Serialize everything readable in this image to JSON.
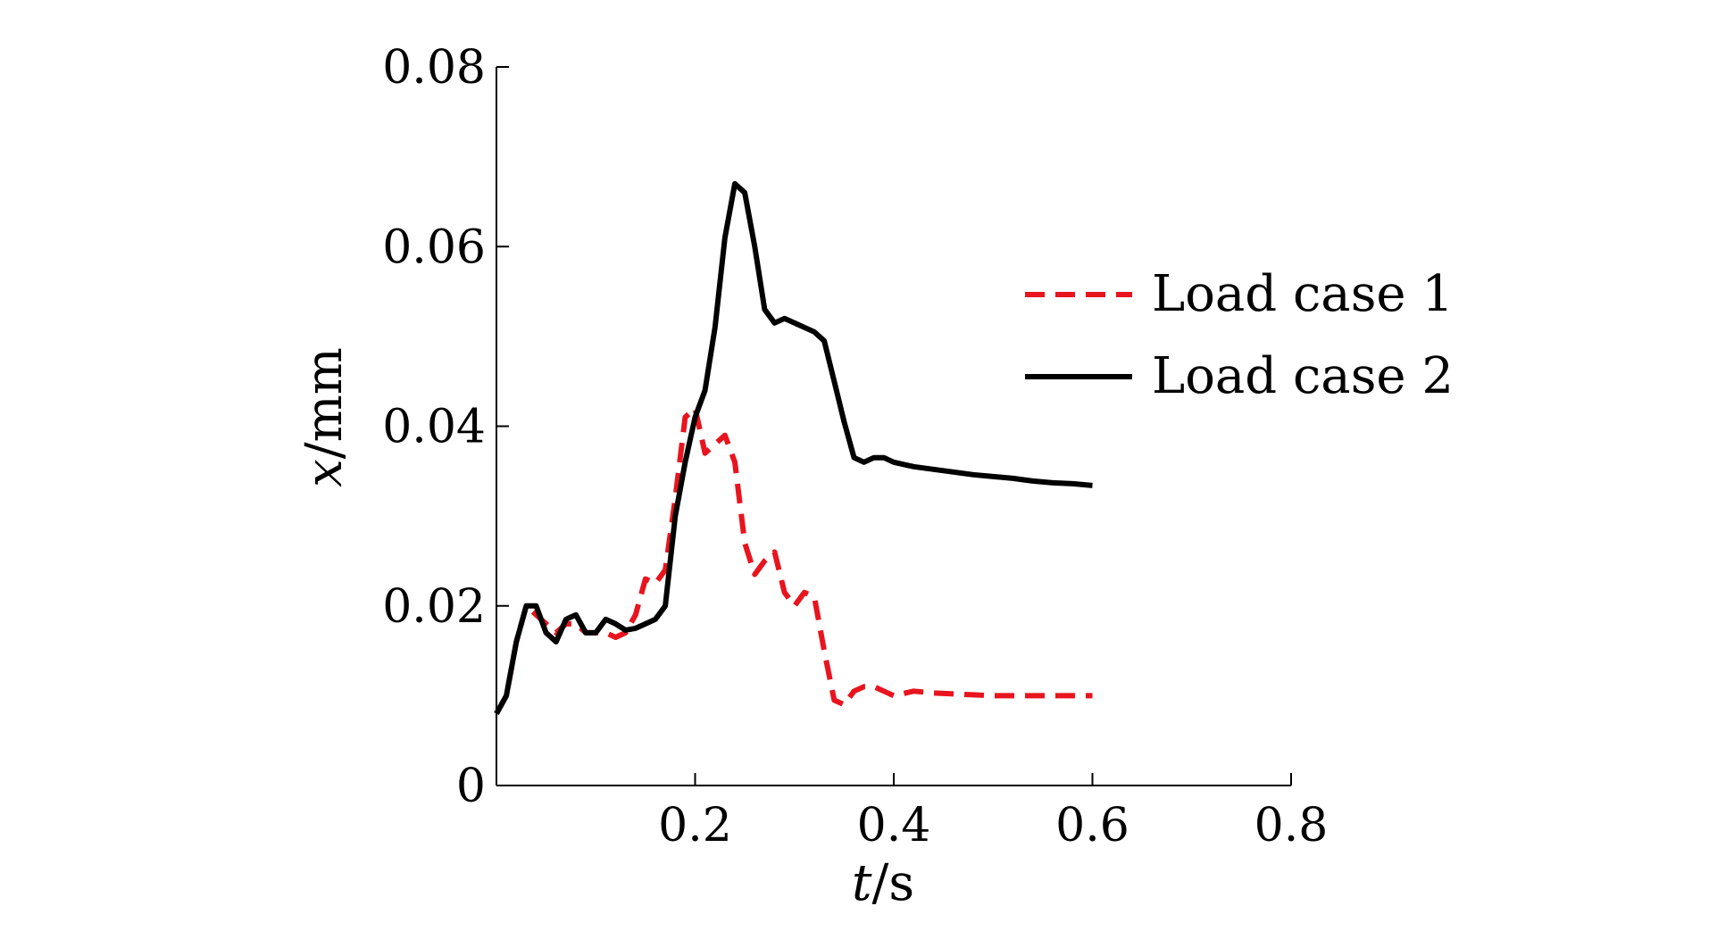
{
  "chart_data": {
    "type": "line",
    "xlabel": {
      "var": "t",
      "unit": "/s"
    },
    "ylabel": {
      "var": "x",
      "unit": "/mm"
    },
    "xlim": [
      0,
      0.8
    ],
    "ylim": [
      0,
      0.08
    ],
    "xticks": [
      0.2,
      0.4,
      0.6,
      0.8
    ],
    "xtick_labels": [
      "0.2",
      "0.4",
      "0.6",
      "0.8"
    ],
    "yticks": [
      0,
      0.02,
      0.04,
      0.06,
      0.08
    ],
    "ytick_labels": [
      "0",
      "0.02",
      "0.04",
      "0.06",
      "0.08"
    ],
    "grid": false,
    "legend_position": "right",
    "series": [
      {
        "name": "Load case 1",
        "color": "#e8141e",
        "style": "dashed",
        "x": [
          0,
          0.01,
          0.02,
          0.03,
          0.04,
          0.05,
          0.06,
          0.07,
          0.08,
          0.09,
          0.1,
          0.11,
          0.12,
          0.13,
          0.14,
          0.15,
          0.16,
          0.17,
          0.18,
          0.19,
          0.2,
          0.21,
          0.22,
          0.23,
          0.24,
          0.25,
          0.26,
          0.27,
          0.28,
          0.29,
          0.3,
          0.31,
          0.32,
          0.33,
          0.34,
          0.35,
          0.36,
          0.37,
          0.38,
          0.39,
          0.4,
          0.42,
          0.44,
          0.46,
          0.48,
          0.5,
          0.52,
          0.54,
          0.56,
          0.58,
          0.6
        ],
        "y": [
          0.008,
          0.01,
          0.016,
          0.02,
          0.019,
          0.018,
          0.017,
          0.018,
          0.018,
          0.017,
          0.017,
          0.017,
          0.0165,
          0.017,
          0.019,
          0.023,
          0.0225,
          0.024,
          0.032,
          0.041,
          0.042,
          0.037,
          0.038,
          0.039,
          0.036,
          0.027,
          0.0235,
          0.025,
          0.026,
          0.0215,
          0.02,
          0.0215,
          0.021,
          0.015,
          0.0095,
          0.009,
          0.0105,
          0.011,
          0.011,
          0.0105,
          0.01,
          0.0105,
          0.0103,
          0.0102,
          0.0101,
          0.01,
          0.01,
          0.01,
          0.01,
          0.01,
          0.01
        ]
      },
      {
        "name": "Load case 2",
        "color": "#000000",
        "style": "solid",
        "x": [
          0,
          0.01,
          0.02,
          0.03,
          0.04,
          0.05,
          0.06,
          0.07,
          0.08,
          0.09,
          0.1,
          0.11,
          0.12,
          0.13,
          0.14,
          0.15,
          0.16,
          0.17,
          0.18,
          0.19,
          0.2,
          0.21,
          0.22,
          0.23,
          0.24,
          0.25,
          0.26,
          0.27,
          0.28,
          0.29,
          0.3,
          0.31,
          0.32,
          0.33,
          0.34,
          0.35,
          0.36,
          0.37,
          0.38,
          0.39,
          0.4,
          0.42,
          0.44,
          0.46,
          0.48,
          0.5,
          0.52,
          0.54,
          0.56,
          0.58,
          0.6
        ],
        "y": [
          0.008,
          0.01,
          0.016,
          0.02,
          0.02,
          0.017,
          0.016,
          0.0185,
          0.019,
          0.017,
          0.017,
          0.0185,
          0.018,
          0.0173,
          0.0175,
          0.018,
          0.0185,
          0.02,
          0.03,
          0.036,
          0.041,
          0.044,
          0.051,
          0.061,
          0.067,
          0.066,
          0.06,
          0.053,
          0.0515,
          0.052,
          0.0515,
          0.051,
          0.0505,
          0.0495,
          0.045,
          0.0405,
          0.0365,
          0.036,
          0.0365,
          0.0365,
          0.036,
          0.0355,
          0.0352,
          0.0349,
          0.0346,
          0.0344,
          0.0342,
          0.0339,
          0.0337,
          0.0336,
          0.0334
        ]
      }
    ]
  }
}
